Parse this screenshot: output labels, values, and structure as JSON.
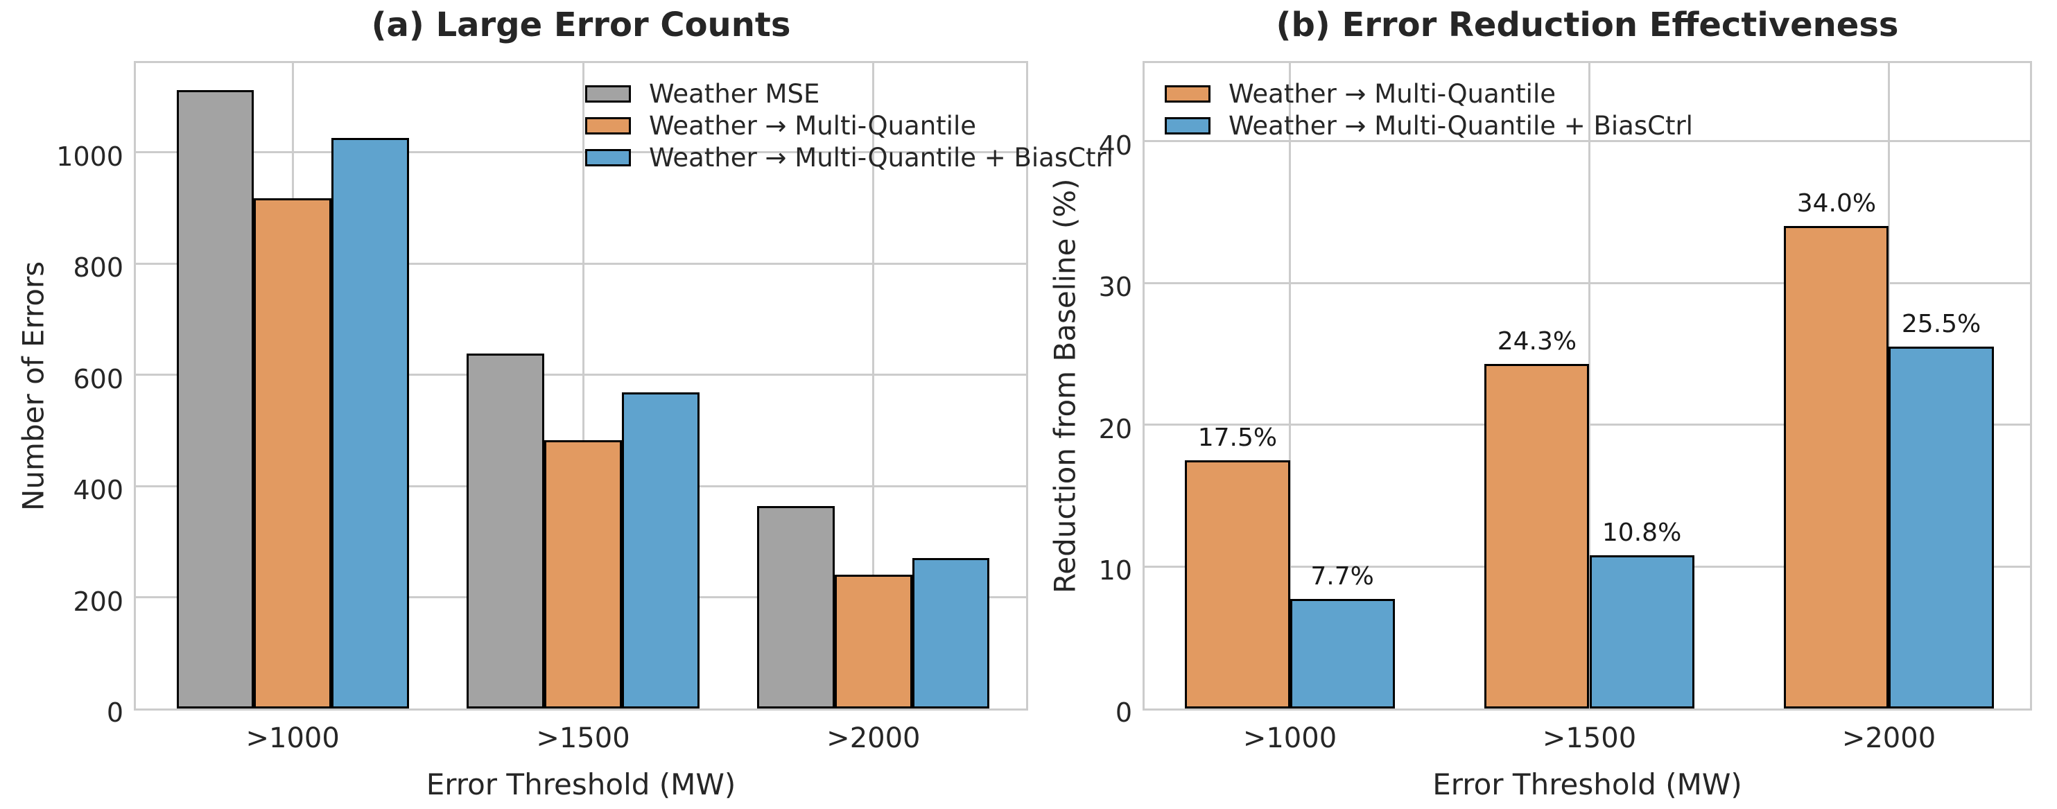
{
  "figure": {
    "background": "#ffffff",
    "text_color": "#262626",
    "grid_color": "#cccccc",
    "bar_edge_color": "#000000"
  },
  "chart_data": [
    {
      "type": "bar",
      "title": "(a) Large Error Counts",
      "xlabel": "Error Threshold (MW)",
      "ylabel": "Number of Errors",
      "categories": [
        ">1000",
        ">1500",
        ">2000"
      ],
      "yticks": [
        0,
        200,
        400,
        600,
        800,
        1000
      ],
      "ylim": [
        0,
        1168
      ],
      "grid": true,
      "legend_position": "upper right inside, frameless",
      "series": [
        {
          "name": "Weather MSE",
          "color": "#a3a3a3",
          "values": [
            1112,
            638,
            364
          ]
        },
        {
          "name": "Weather → Multi-Quantile",
          "color": "#e29a61",
          "values": [
            917,
            483,
            240
          ]
        },
        {
          "name": "Weather → Multi-Quantile + BiasCtrl",
          "color": "#5fa3ce",
          "values": [
            1026,
            569,
            271
          ]
        }
      ]
    },
    {
      "type": "bar",
      "title": "(b) Error Reduction Effectiveness",
      "xlabel": "Error Threshold (MW)",
      "ylabel": "Reduction from Baseline (%)",
      "categories": [
        ">1000",
        ">1500",
        ">2000"
      ],
      "yticks": [
        0,
        10,
        20,
        30,
        40
      ],
      "ylim": [
        0,
        45.8
      ],
      "grid": true,
      "legend_position": "upper left inside, frameless",
      "series": [
        {
          "name": "Weather → Multi-Quantile",
          "color": "#e29a61",
          "values": [
            17.5,
            24.3,
            34.0
          ],
          "labels": [
            "17.5%",
            "24.3%",
            "34.0%"
          ]
        },
        {
          "name": "Weather → Multi-Quantile + BiasCtrl",
          "color": "#5fa3ce",
          "values": [
            7.7,
            10.8,
            25.5
          ],
          "labels": [
            "7.7%",
            "10.8%",
            "25.5%"
          ]
        }
      ]
    }
  ]
}
